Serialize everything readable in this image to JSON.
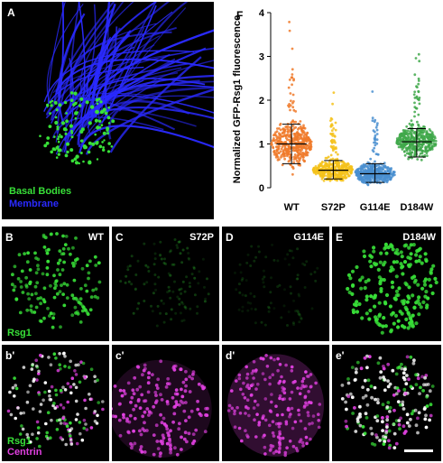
{
  "panels": {
    "a": {
      "letter": "A",
      "legend": [
        "Basal Bodies",
        "Membrane"
      ]
    },
    "b": {
      "letter": "B",
      "tag": "WT",
      "channel": "Rsg1"
    },
    "c": {
      "letter": "C",
      "tag": "S72P"
    },
    "d": {
      "letter": "D",
      "tag": "G114E"
    },
    "e": {
      "letter": "E",
      "tag": "D184W"
    },
    "b2": {
      "letter": "b'",
      "channels": [
        "Rsg1",
        "Centrin"
      ]
    },
    "c2": {
      "letter": "c'"
    },
    "d2": {
      "letter": "d'"
    },
    "e2": {
      "letter": "e'"
    }
  },
  "colors": {
    "green": "#38e038",
    "blue": "#2a2aff",
    "magenta": "#e040e0",
    "white": "#ffffff",
    "black": "#000000"
  },
  "chart_data": {
    "panel_letter": "F",
    "type": "scatter",
    "ylabel": "Normalized GFP-Rsg1 fluorescence",
    "ylim": [
      0,
      4
    ],
    "yticks": [
      0,
      1,
      2,
      3,
      4
    ],
    "categories": [
      "WT",
      "S72P",
      "G114E",
      "D184W"
    ],
    "series": [
      {
        "name": "WT",
        "color": "#f07a2a",
        "mean": 1.0,
        "sd_low": 0.55,
        "sd_high": 1.45,
        "max": 3.85
      },
      {
        "name": "S72P",
        "color": "#f5c21b",
        "mean": 0.4,
        "sd_low": 0.2,
        "sd_high": 0.62,
        "max": 2.2
      },
      {
        "name": "G114E",
        "color": "#4a8fd0",
        "mean": 0.32,
        "sd_low": 0.12,
        "sd_high": 0.55,
        "max": 2.35
      },
      {
        "name": "D184W",
        "color": "#3fa84a",
        "mean": 1.05,
        "sd_low": 0.7,
        "sd_high": 1.35,
        "max": 3.25
      }
    ]
  }
}
